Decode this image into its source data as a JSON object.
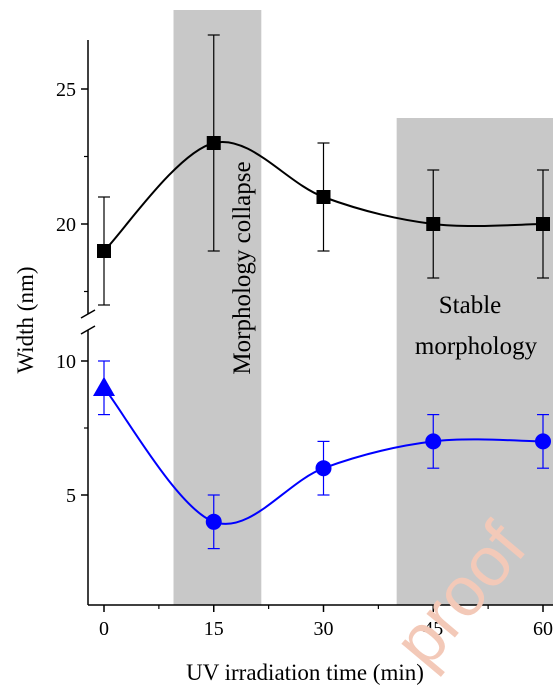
{
  "chart_data": {
    "type": "line",
    "xlabel": "UV irradiation time (min)",
    "ylabel": "Width (nm)",
    "x_ticks": [
      "0",
      "15",
      "30",
      "45",
      "60"
    ],
    "y_ticks_lower": [
      "5",
      "10"
    ],
    "y_ticks_upper": [
      "20",
      "25"
    ],
    "xlim": [
      -4,
      61
    ],
    "ylim_lower": [
      2.5,
      11
    ],
    "ylim_upper": [
      15,
      27
    ],
    "axis_break": true,
    "grid": false,
    "legend": "none",
    "shaded_regions": [
      {
        "x": [
          9.5,
          21.5
        ],
        "label": "Morphology collapse",
        "orientation": "vertical"
      },
      {
        "x": [
          40,
          61
        ],
        "label_lines": [
          "Stable",
          "morphology"
        ],
        "orientation": "horizontal"
      }
    ],
    "series": [
      {
        "color": "#000000",
        "marker": "square",
        "panel": "upper",
        "x": [
          0,
          15,
          30,
          45,
          60
        ],
        "y": [
          19,
          23,
          21,
          20,
          20
        ],
        "err": [
          2,
          4,
          2,
          2,
          2
        ]
      },
      {
        "color": "#0000ff",
        "marker": "circle",
        "first_marker": "triangle",
        "panel": "lower",
        "x": [
          0,
          15,
          30,
          45,
          60
        ],
        "y": [
          9,
          4,
          6,
          7,
          7
        ],
        "err": [
          1,
          1,
          1,
          1,
          1
        ]
      }
    ]
  },
  "watermark": "proof",
  "colors": {
    "shade": "#c8c8c8",
    "upper_series": "#000000",
    "lower_series": "#0000ff"
  }
}
